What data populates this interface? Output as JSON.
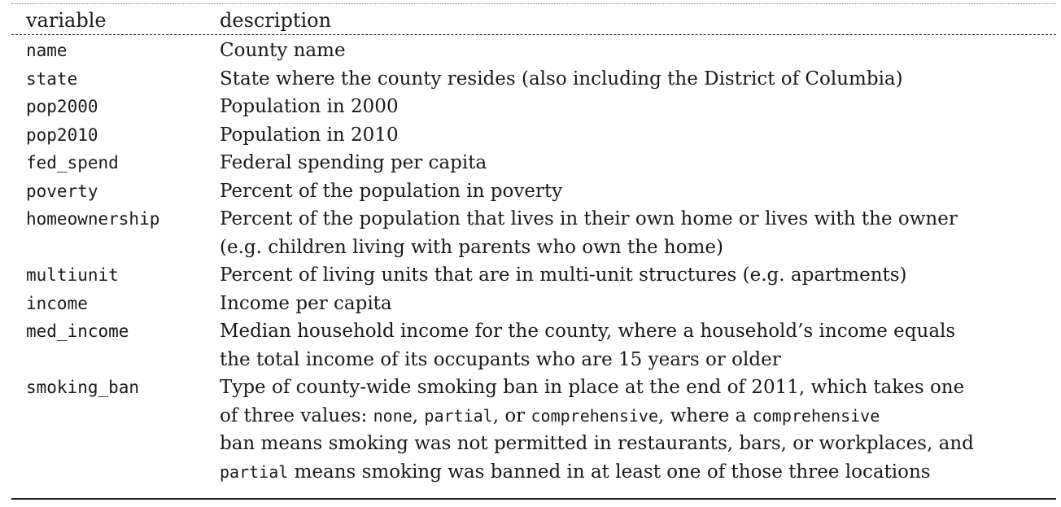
{
  "header": {
    "variable": "variable",
    "description": "description"
  },
  "rows": [
    {
      "var": "name",
      "lines": [
        "County name"
      ]
    },
    {
      "var": "state",
      "lines": [
        "State where the county resides (also including the District of Columbia)"
      ]
    },
    {
      "var": "pop2000",
      "lines": [
        "Population in 2000"
      ]
    },
    {
      "var": "pop2010",
      "lines": [
        "Population in 2010"
      ]
    },
    {
      "var": "fed_spend",
      "lines": [
        "Federal spending per capita"
      ]
    },
    {
      "var": "poverty",
      "lines": [
        "Percent of the population in poverty"
      ]
    },
    {
      "var": "homeownership",
      "lines": [
        "Percent of the population that lives in their own home or lives with the owner",
        "(e.g. children living with parents who own the home)"
      ]
    },
    {
      "var": "multiunit",
      "lines": [
        "Percent of living units that are in multi-unit structures (e.g. apartments)"
      ]
    },
    {
      "var": "income",
      "lines": [
        "Income per capita"
      ]
    },
    {
      "var": "med_income",
      "lines": [
        "Median household income for the county, where a household’s income equals",
        "the total income of its occupants who are 15 years or older"
      ]
    },
    {
      "var": "smoking_ban",
      "lines": [
        "Type of county-wide smoking ban in place at the end of 2011, which takes one",
        "of three values: ",
        "none",
        ", ",
        "partial",
        ", or ",
        "comprehensive",
        ", where a ",
        "comprehensive",
        "ban means smoking was not permitted in restaurants, bars, or workplaces, and",
        "partial",
        " means smoking was banned in at least one of those three locations"
      ]
    }
  ]
}
